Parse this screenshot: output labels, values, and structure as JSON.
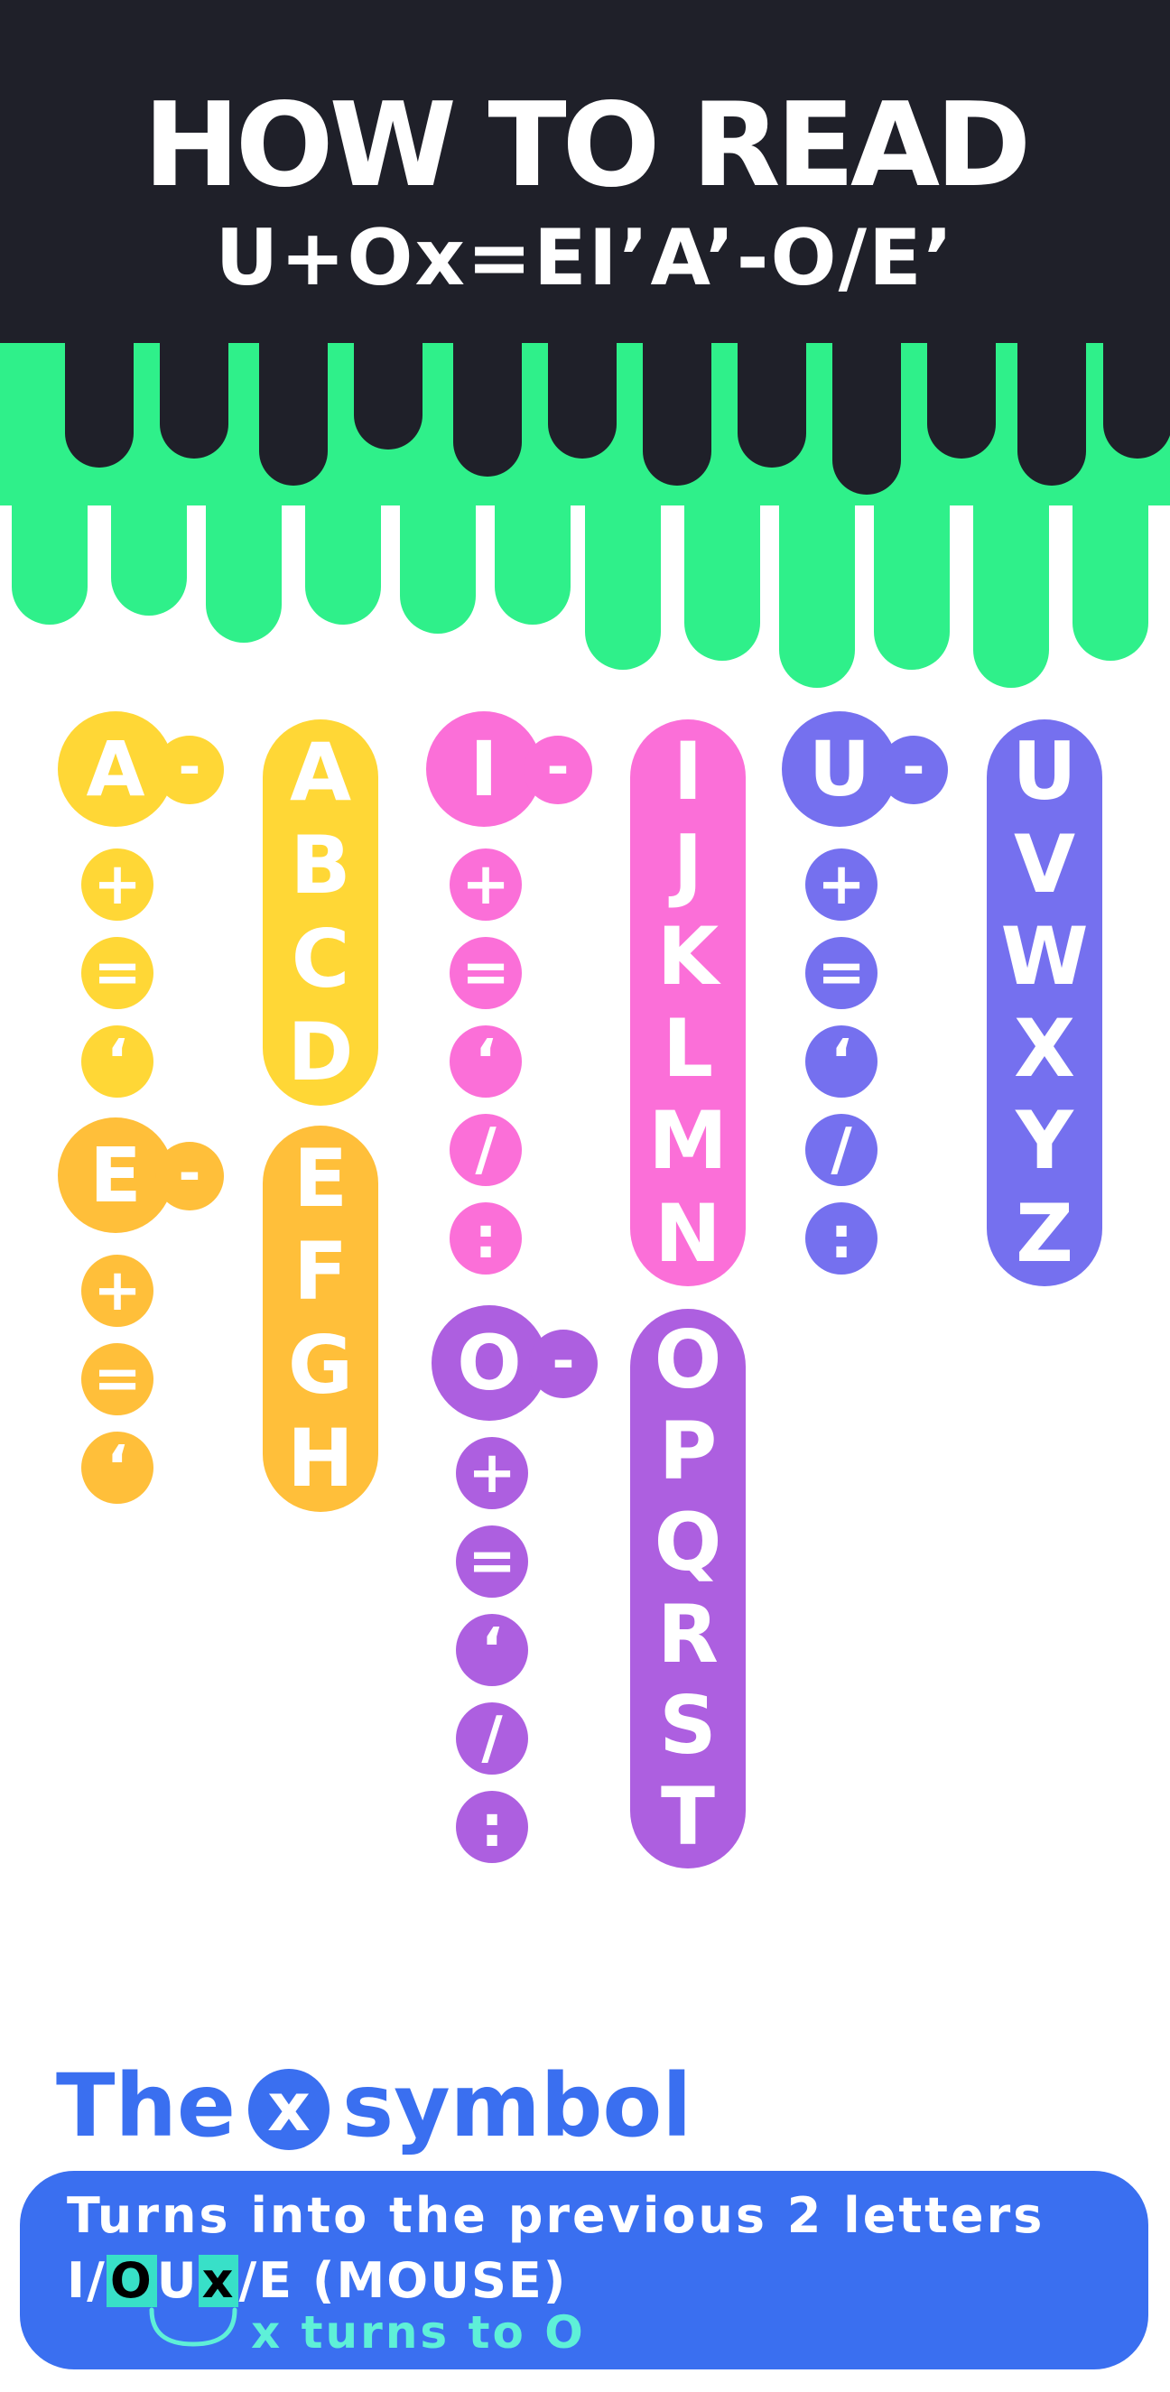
{
  "header": {
    "title": "HOW TO READ",
    "subtitle": "U+Ox=EI’A’-O/E’"
  },
  "colors": {
    "dark": "#1f2029",
    "green": "#2ff08a",
    "yellow": "#ffd736",
    "orange": "#ffbf3a",
    "pink": "#fb6fd8",
    "purple": "#ad5fe0",
    "violet": "#7570ef",
    "blue": "#3a6ff0"
  },
  "groups": [
    {
      "key": "A",
      "symbols": [
        "+",
        "=",
        "‘"
      ],
      "letters": [
        "A",
        "B",
        "C",
        "D"
      ]
    },
    {
      "key": "E",
      "symbols": [
        "+",
        "=",
        "‘"
      ],
      "letters": [
        "E",
        "F",
        "G",
        "H"
      ]
    },
    {
      "key": "I",
      "symbols": [
        "+",
        "=",
        "‘",
        "/",
        ":"
      ],
      "letters": [
        "I",
        "J",
        "K",
        "L",
        "M",
        "N"
      ]
    },
    {
      "key": "O",
      "symbols": [
        "+",
        "=",
        "‘",
        "/",
        ":"
      ],
      "letters": [
        "O",
        "P",
        "Q",
        "R",
        "S",
        "T"
      ]
    },
    {
      "key": "U",
      "symbols": [
        "+",
        "=",
        "‘",
        "/",
        ":"
      ],
      "letters": [
        "U",
        "V",
        "W",
        "X",
        "Y",
        "Z"
      ]
    }
  ],
  "dash": "-",
  "symbol_section": {
    "title_before": "The",
    "title_icon": "x",
    "title_after": "symbol",
    "line1": "Turns into the previous 2 letters",
    "line2_prefix": "I/",
    "line2_o": "O",
    "line2_u": "U",
    "line2_x": "x",
    "line2_suffix": "/E (MOUSE)",
    "caption": "x turns to O"
  }
}
